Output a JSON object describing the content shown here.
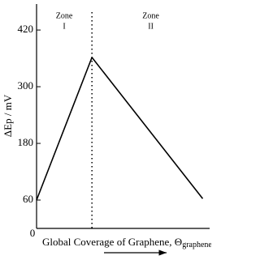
{
  "chart_data": {
    "type": "line",
    "y_label": "ΔEp / mV",
    "x_label": "Global Coverage of Graphene, Θ",
    "x_label_subscript": "graphene",
    "x": [
      0,
      0.32,
      0.96
    ],
    "values": [
      60,
      362,
      63
    ],
    "color": "#000000",
    "xlim": [
      0,
      1
    ],
    "xticks": [
      0
    ],
    "ylim": [
      0,
      475
    ],
    "yticks": [
      60,
      180,
      300,
      420
    ],
    "divider_x": 0.32,
    "zones": [
      {
        "label": "Zone",
        "numeral": "I"
      },
      {
        "label": "Zone",
        "numeral": "II"
      }
    ]
  }
}
